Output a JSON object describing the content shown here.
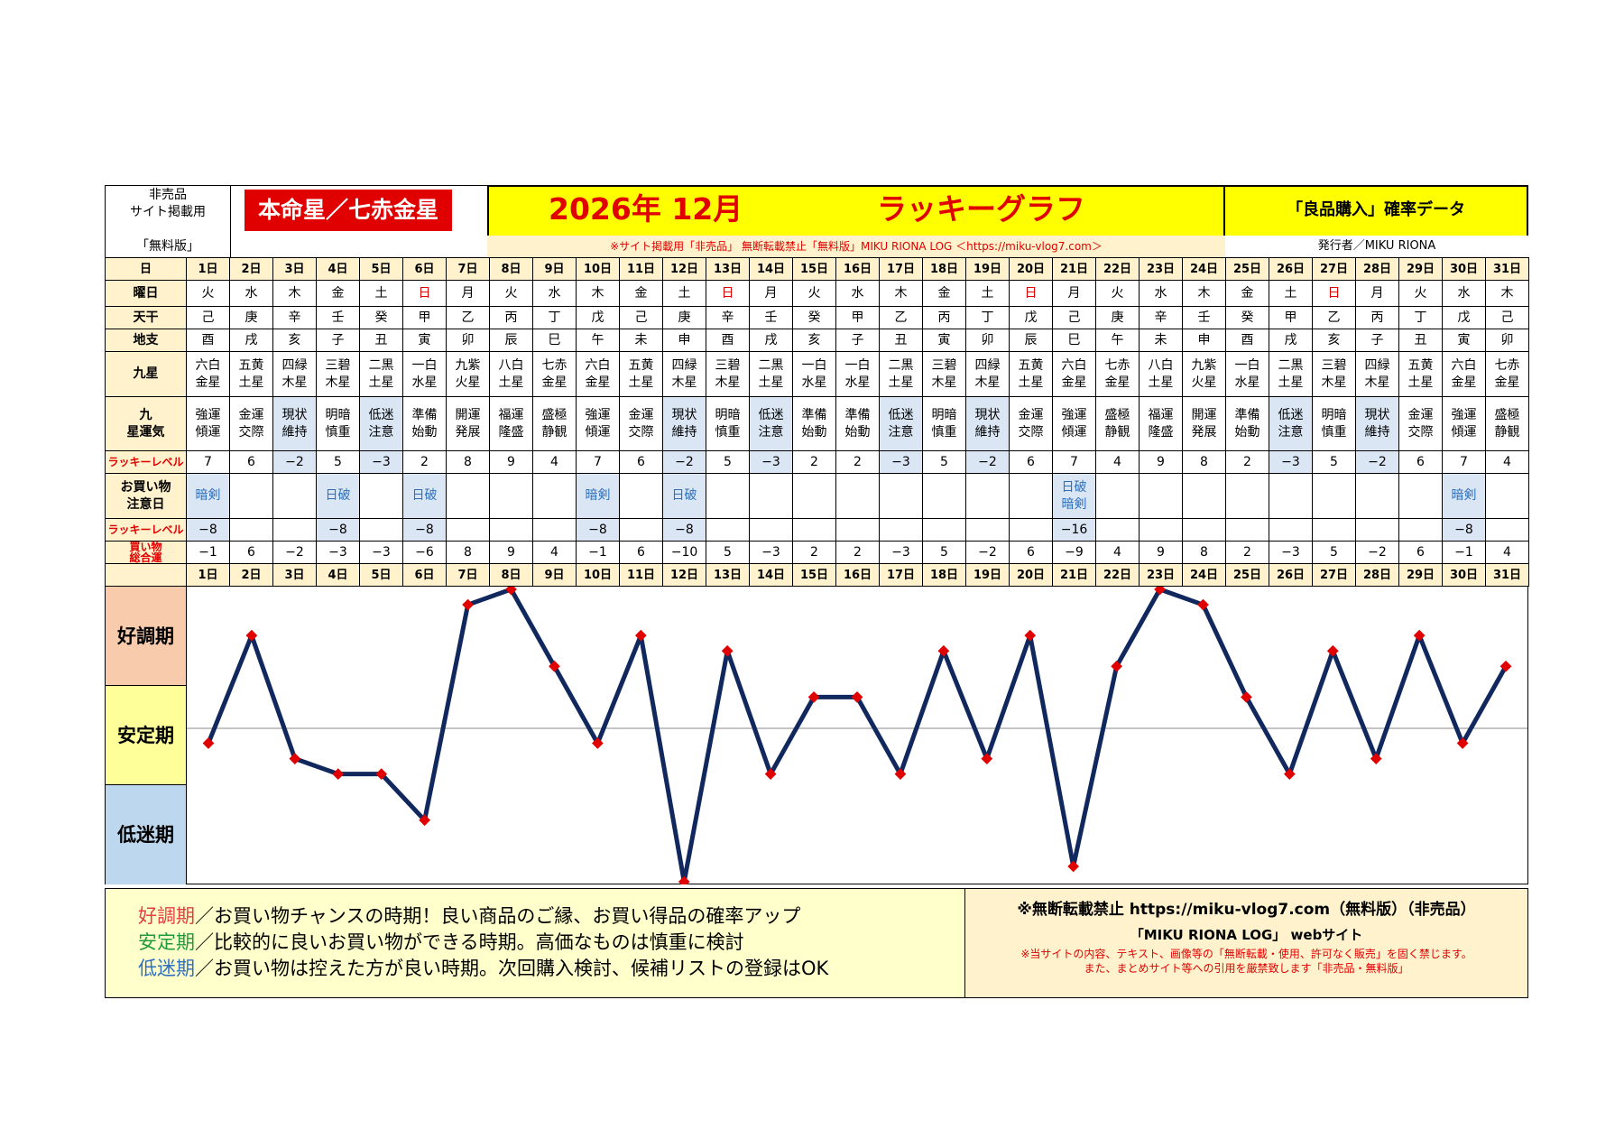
{
  "header": {
    "note_lines": [
      "非売品",
      "サイト掲載用",
      "「無料版」"
    ],
    "star": "本命星／七赤金星",
    "title_date": "2026年 12月",
    "title_name": "ラッキーグラフ",
    "right_title": "「良品購入」確率データ",
    "warning": "※サイト掲載用「非売品」 無断転載禁止「無料版」MIKU RIONA LOG ＜https://miku-vlog7.com＞",
    "publisher": "発行者／MIKU RIONA"
  },
  "row_labels": {
    "day": "日",
    "weekday": "曜日",
    "stem": "天干",
    "branch": "地支",
    "ninestar": "九星",
    "luck": "九星運気",
    "level": "ラッキーレベル",
    "caution": "お買い物注意日",
    "level2": "ラッキーレベル",
    "total": "買い物総合運"
  },
  "days": [
    "1日",
    "2日",
    "3日",
    "4日",
    "5日",
    "6日",
    "7日",
    "8日",
    "9日",
    "10日",
    "11日",
    "12日",
    "13日",
    "14日",
    "15日",
    "16日",
    "17日",
    "18日",
    "19日",
    "20日",
    "21日",
    "22日",
    "23日",
    "24日",
    "25日",
    "26日",
    "27日",
    "28日",
    "29日",
    "30日",
    "31日"
  ],
  "weekdays": [
    "火",
    "水",
    "木",
    "金",
    "土",
    "日",
    "月",
    "火",
    "水",
    "木",
    "金",
    "土",
    "日",
    "月",
    "火",
    "水",
    "木",
    "金",
    "土",
    "日",
    "月",
    "火",
    "水",
    "木",
    "金",
    "土",
    "日",
    "月",
    "火",
    "水",
    "木"
  ],
  "stems": [
    "己",
    "庚",
    "辛",
    "壬",
    "癸",
    "甲",
    "乙",
    "丙",
    "丁",
    "戊",
    "己",
    "庚",
    "辛",
    "壬",
    "癸",
    "甲",
    "乙",
    "丙",
    "丁",
    "戊",
    "己",
    "庚",
    "辛",
    "壬",
    "癸",
    "甲",
    "乙",
    "丙",
    "丁",
    "戊",
    "己"
  ],
  "branches": [
    "酉",
    "戌",
    "亥",
    "子",
    "丑",
    "寅",
    "卯",
    "辰",
    "巳",
    "午",
    "未",
    "申",
    "酉",
    "戌",
    "亥",
    "子",
    "丑",
    "寅",
    "卯",
    "辰",
    "巳",
    "午",
    "未",
    "申",
    "酉",
    "戌",
    "亥",
    "子",
    "丑",
    "寅",
    "卯"
  ],
  "ninestars": [
    "六白金星",
    "五黄土星",
    "四緑木星",
    "三碧木星",
    "二黒土星",
    "一白水星",
    "九紫火星",
    "八白土星",
    "七赤金星",
    "六白金星",
    "五黄土星",
    "四緑木星",
    "三碧木星",
    "二黒土星",
    "一白水星",
    "一白水星",
    "二黒土星",
    "三碧木星",
    "四緑木星",
    "五黄土星",
    "六白金星",
    "七赤金星",
    "八白土星",
    "九紫火星",
    "一白水星",
    "二黒土星",
    "三碧木星",
    "四緑木星",
    "五黄土星",
    "六白金星",
    "七赤金星"
  ],
  "luck": [
    "強運傾運",
    "金運交際",
    "現状維持",
    "明暗慎重",
    "低迷注意",
    "準備始動",
    "開運発展",
    "福運隆盛",
    "盛極静観",
    "強運傾運",
    "金運交際",
    "現状維持",
    "明暗慎重",
    "低迷注意",
    "準備始動",
    "準備始動",
    "低迷注意",
    "明暗慎重",
    "現状維持",
    "金運交際",
    "強運傾運",
    "盛極静観",
    "福運隆盛",
    "開運発展",
    "準備始動",
    "低迷注意",
    "明暗慎重",
    "現状維持",
    "金運交際",
    "強運傾運",
    "盛極静観"
  ],
  "levels": [
    "7",
    "6",
    "−2",
    "5",
    "−3",
    "2",
    "8",
    "9",
    "4",
    "7",
    "6",
    "−2",
    "5",
    "−3",
    "2",
    "2",
    "−3",
    "5",
    "−2",
    "6",
    "7",
    "4",
    "9",
    "8",
    "2",
    "−3",
    "5",
    "−2",
    "6",
    "7",
    "4"
  ],
  "cautions": [
    "暗剣",
    "",
    "",
    "日破",
    "",
    "日破",
    "",
    "",
    "",
    "暗剣",
    "",
    "日破",
    "",
    "",
    "",
    "",
    "",
    "",
    "",
    "",
    "日破暗剣",
    "",
    "",
    "",
    "",
    "",
    "",
    "",
    "",
    "暗剣",
    ""
  ],
  "levels2": [
    "−8",
    "",
    "",
    "−8",
    "",
    "−8",
    "",
    "",
    "",
    "−8",
    "",
    "−8",
    "",
    "",
    "",
    "",
    "",
    "",
    "",
    "",
    "−16",
    "",
    "",
    "",
    "",
    "",
    "",
    "",
    "",
    "−8",
    ""
  ],
  "totals": [
    "−1",
    "6",
    "−2",
    "−3",
    "−3",
    "−6",
    "8",
    "9",
    "4",
    "−1",
    "6",
    "−10",
    "5",
    "−3",
    "2",
    "2",
    "−3",
    "5",
    "−2",
    "6",
    "−9",
    "4",
    "9",
    "8",
    "2",
    "−3",
    "5",
    "−2",
    "6",
    "−1",
    "4"
  ],
  "phases": {
    "good": "好調期",
    "stable": "安定期",
    "low": "低迷期"
  },
  "chart_data": {
    "type": "line",
    "categories": [
      "1日",
      "2日",
      "3日",
      "4日",
      "5日",
      "6日",
      "7日",
      "8日",
      "9日",
      "10日",
      "11日",
      "12日",
      "13日",
      "14日",
      "15日",
      "16日",
      "17日",
      "18日",
      "19日",
      "20日",
      "21日",
      "22日",
      "23日",
      "24日",
      "25日",
      "26日",
      "27日",
      "28日",
      "29日",
      "30日",
      "31日"
    ],
    "series": [
      {
        "values": [
          -1,
          6,
          -2,
          -3,
          -3,
          -6,
          8,
          9,
          4,
          -1,
          6,
          -10,
          5,
          -3,
          2,
          2,
          -3,
          5,
          -2,
          6,
          -9,
          4,
          9,
          8,
          2,
          -3,
          5,
          -2,
          6,
          -1,
          4
        ]
      }
    ],
    "ylim": [
      -10,
      9
    ],
    "bands": [
      "好調期",
      "安定期",
      "低迷期"
    ],
    "line_color": "#10285e",
    "marker_color": "#e00000"
  },
  "footer": {
    "good_label": "好調期",
    "good_text": "／お買い物チャンスの時期！良い商品のご縁、お買い得品の確率アップ",
    "stable_label": "安定期",
    "stable_text": "／比較的に良いお買い物ができる時期。高価なものは慎重に検討",
    "low_label": "低迷期",
    "low_text": "／お買い物は控えた方が良い時期。次回購入検討、候補リストの登録はOK",
    "right_line1": "※無断転載禁止 https://miku-vlog7.com（無料版）（非売品）",
    "right_line2": "「MIKU RIONA LOG」 webサイト",
    "right_line3": "※当サイトの内容、テキスト、画像等の「無断転載・使用、許可なく販売」を固く禁じます。",
    "right_line4": "また、まとめサイト等への引用を厳禁致します「非売品・無料版」"
  }
}
